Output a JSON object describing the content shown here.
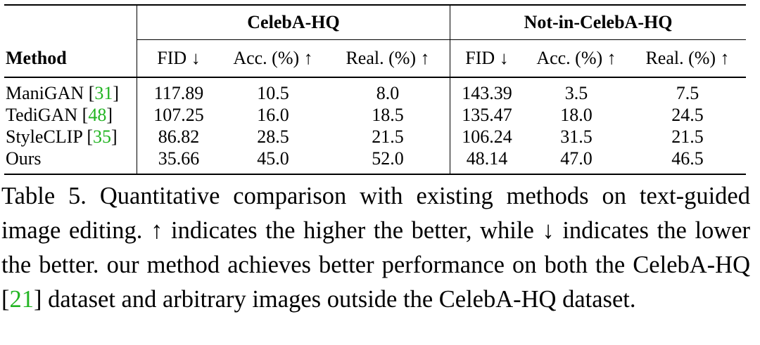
{
  "table": {
    "groups": [
      "CelebA-HQ",
      "Not-in-CelebA-HQ"
    ],
    "method_header": "Method",
    "columns": [
      "FID ↓",
      "Acc. (%) ↑",
      "Real. (%) ↑",
      "FID ↓",
      "Acc. (%) ↑",
      "Real. (%) ↑"
    ],
    "rows": [
      {
        "method": "ManiGAN",
        "cite": "31",
        "values": [
          "117.89",
          "10.5",
          "8.0",
          "143.39",
          "3.5",
          "7.5"
        ]
      },
      {
        "method": "TediGAN",
        "cite": "48",
        "values": [
          "107.25",
          "16.0",
          "18.5",
          "135.47",
          "18.0",
          "24.5"
        ]
      },
      {
        "method": "StyleCLIP",
        "cite": "35",
        "values": [
          "86.82",
          "28.5",
          "21.5",
          "106.24",
          "31.5",
          "21.5"
        ]
      },
      {
        "method": "Ours",
        "cite": "",
        "values": [
          "35.66",
          "45.0",
          "52.0",
          "48.14",
          "47.0",
          "46.5"
        ]
      }
    ]
  },
  "caption": {
    "part1": "Table 5. Quantitative comparison with existing methods on text-guided image editing. ↑ indicates the higher the better, while ↓ indicates the lower the better. our method achieves better performance on both the CelebA-HQ [",
    "cite": "21",
    "part2": "] dataset and arbitrary images outside the CelebA-HQ dataset."
  },
  "colors": {
    "citation": "#22b422"
  }
}
